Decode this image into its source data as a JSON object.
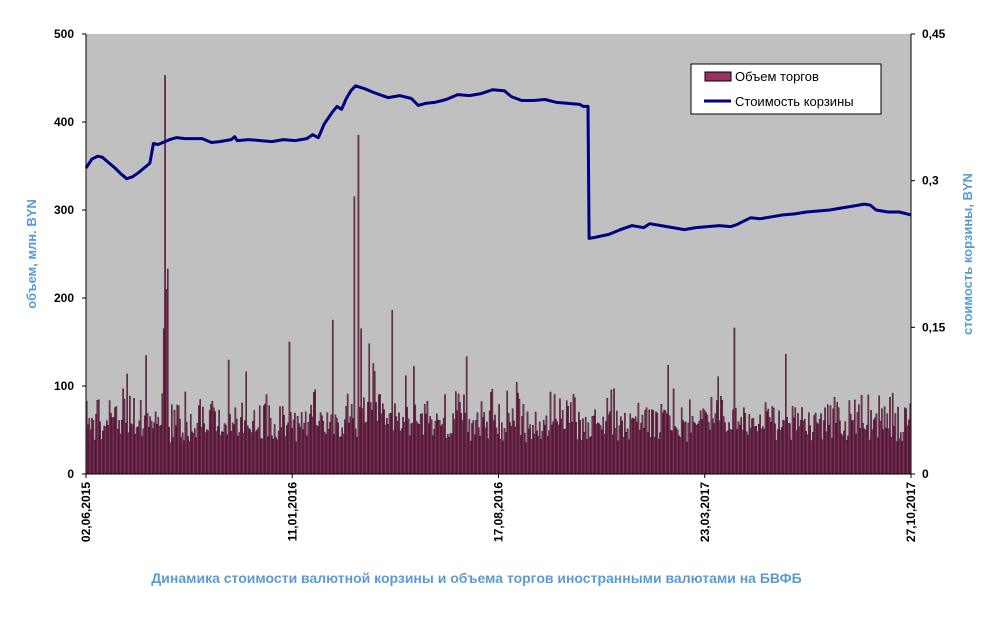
{
  "caption": "Динамика стоимости валютной корзины и объема торгов иностранными валютами на БВФБ",
  "colors": {
    "plot_background": "#c0c0c0",
    "bar_fill": "#993366",
    "bar_outline": "#000000",
    "line": "#000080",
    "axis_title": "#5b9bd5"
  },
  "chart_data": {
    "type": "bar+line",
    "grid": false,
    "legend_position": "top-right",
    "x_tick_labels": [
      "02,06,2015",
      "11,01,2016",
      "17,08,2016",
      "23,03,2017",
      "27,10,2017"
    ],
    "y_left": {
      "label": "объем, млн. BYN",
      "range": [
        0,
        500
      ],
      "tick_labels": [
        "0",
        "100",
        "200",
        "300",
        "400",
        "500"
      ]
    },
    "y_right": {
      "label": "стоимость корзины, BYN",
      "range": [
        0,
        0.45
      ],
      "tick_labels": [
        "0",
        "0,15",
        "0,3",
        "0,45"
      ]
    },
    "series": [
      {
        "name": "Объем торгов",
        "kind": "bar",
        "axis": "left",
        "n_points": 610,
        "typical_range": [
          35,
          100
        ],
        "peaks": [
          {
            "index": 57,
            "value": 165
          },
          {
            "index": 58,
            "value": 453
          },
          {
            "index": 59,
            "value": 210
          },
          {
            "index": 60,
            "value": 233
          },
          {
            "index": 150,
            "value": 150
          },
          {
            "index": 182,
            "value": 175
          },
          {
            "index": 198,
            "value": 315
          },
          {
            "index": 201,
            "value": 385
          },
          {
            "index": 203,
            "value": 165
          },
          {
            "index": 209,
            "value": 148
          },
          {
            "index": 226,
            "value": 186
          },
          {
            "index": 479,
            "value": 166
          }
        ]
      },
      {
        "name": "Стоимость корзины",
        "kind": "line",
        "axis": "right",
        "points": [
          [
            0,
            0.313
          ],
          [
            5,
            0.322
          ],
          [
            10,
            0.325
          ],
          [
            14,
            0.324
          ],
          [
            20,
            0.318
          ],
          [
            25,
            0.313
          ],
          [
            30,
            0.307
          ],
          [
            35,
            0.302
          ],
          [
            40,
            0.304
          ],
          [
            45,
            0.308
          ],
          [
            50,
            0.313
          ],
          [
            55,
            0.318
          ],
          [
            58,
            0.338
          ],
          [
            62,
            0.337
          ],
          [
            68,
            0.34
          ],
          [
            72,
            0.342
          ],
          [
            78,
            0.344
          ],
          [
            85,
            0.343
          ],
          [
            100,
            0.343
          ],
          [
            108,
            0.339
          ],
          [
            115,
            0.34
          ],
          [
            125,
            0.342
          ],
          [
            128,
            0.345
          ],
          [
            130,
            0.341
          ],
          [
            140,
            0.342
          ],
          [
            150,
            0.341
          ],
          [
            160,
            0.34
          ],
          [
            170,
            0.342
          ],
          [
            180,
            0.341
          ],
          [
            190,
            0.343
          ],
          [
            195,
            0.347
          ],
          [
            200,
            0.344
          ],
          [
            205,
            0.358
          ],
          [
            212,
            0.37
          ],
          [
            216,
            0.376
          ],
          [
            220,
            0.373
          ],
          [
            224,
            0.384
          ],
          [
            228,
            0.392
          ],
          [
            232,
            0.397
          ],
          [
            240,
            0.394
          ],
          [
            248,
            0.39
          ],
          [
            260,
            0.385
          ],
          [
            270,
            0.387
          ],
          [
            280,
            0.384
          ],
          [
            286,
            0.377
          ],
          [
            292,
            0.379
          ],
          [
            300,
            0.38
          ],
          [
            310,
            0.383
          ],
          [
            320,
            0.388
          ],
          [
            330,
            0.387
          ],
          [
            340,
            0.389
          ],
          [
            350,
            0.393
          ],
          [
            360,
            0.392
          ],
          [
            366,
            0.386
          ],
          [
            375,
            0.382
          ],
          [
            385,
            0.382
          ],
          [
            395,
            0.383
          ],
          [
            405,
            0.38
          ],
          [
            415,
            0.379
          ],
          [
            425,
            0.378
          ],
          [
            428,
            0.376
          ],
          [
            432,
            0.376
          ],
          [
            433,
            0.241
          ],
          [
            438,
            0.242
          ],
          [
            450,
            0.245
          ],
          [
            460,
            0.25
          ],
          [
            470,
            0.254
          ],
          [
            480,
            0.252
          ],
          [
            485,
            0.256
          ],
          [
            495,
            0.254
          ],
          [
            505,
            0.252
          ],
          [
            515,
            0.25
          ],
          [
            525,
            0.252
          ],
          [
            535,
            0.253
          ],
          [
            545,
            0.254
          ],
          [
            555,
            0.253
          ],
          [
            560,
            0.255
          ],
          [
            565,
            0.258
          ],
          [
            572,
            0.262
          ],
          [
            580,
            0.261
          ],
          [
            590,
            0.263
          ],
          [
            600,
            0.265
          ],
          [
            610,
            0.266
          ],
          [
            620,
            0.268
          ],
          [
            630,
            0.269
          ],
          [
            640,
            0.27
          ],
          [
            650,
            0.272
          ],
          [
            660,
            0.274
          ],
          [
            670,
            0.276
          ],
          [
            675,
            0.275
          ],
          [
            680,
            0.27
          ],
          [
            690,
            0.268
          ],
          [
            700,
            0.268
          ],
          [
            710,
            0.265
          ]
        ]
      }
    ]
  }
}
